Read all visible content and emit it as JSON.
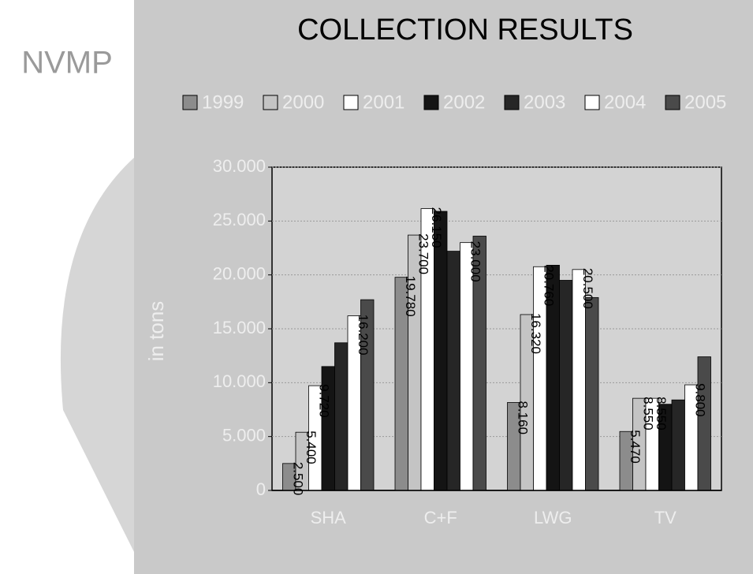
{
  "chart_data": {
    "type": "bar",
    "title": "COLLECTION RESULTS",
    "logo": "NVMP",
    "y_label": "in tons",
    "categories": [
      "SHA",
      "C+F",
      "LWG",
      "TV"
    ],
    "series": [
      {
        "name": "1999",
        "color": "#8c8c8c",
        "values": [
          2500,
          19780,
          8160,
          5470
        ],
        "value_labels": [
          "2.500",
          "19.780",
          "8.160",
          "5.470"
        ]
      },
      {
        "name": "2000",
        "color": "#c4c4c4",
        "values": [
          5400,
          23700,
          16320,
          8550
        ],
        "value_labels": [
          "5.400",
          "23.700",
          "16.320",
          "8.550"
        ]
      },
      {
        "name": "2001",
        "color": "#ffffff",
        "values": [
          9720,
          26150,
          20760,
          8550
        ],
        "value_labels": [
          "9.720",
          "26.150",
          "20.760",
          "8.550"
        ]
      },
      {
        "name": "2002",
        "color": "#141414",
        "values": [
          11500,
          25900,
          20900,
          8000
        ]
      },
      {
        "name": "2003",
        "color": "#262626",
        "values": [
          13700,
          22200,
          19500,
          8400
        ]
      },
      {
        "name": "2004",
        "color": "#ffffff",
        "values": [
          16200,
          23000,
          20500,
          9800
        ],
        "value_labels": [
          "16.200",
          "23.000",
          "20.500",
          "9.800"
        ]
      },
      {
        "name": "2005",
        "color": "#4a4a4a",
        "values": [
          17700,
          23600,
          17900,
          12400
        ]
      }
    ],
    "ylim": [
      0,
      30000
    ],
    "yticks": [
      0,
      {
        "value": 5000,
        "label": "5.000"
      },
      {
        "value": 10000,
        "label": "10.000"
      },
      {
        "value": 15000,
        "label": "15.000"
      },
      {
        "value": 20000,
        "label": "20.000"
      },
      {
        "value": 25000,
        "label": "25.000"
      },
      {
        "value": 30000,
        "label": "30.000"
      }
    ],
    "grid": true
  }
}
